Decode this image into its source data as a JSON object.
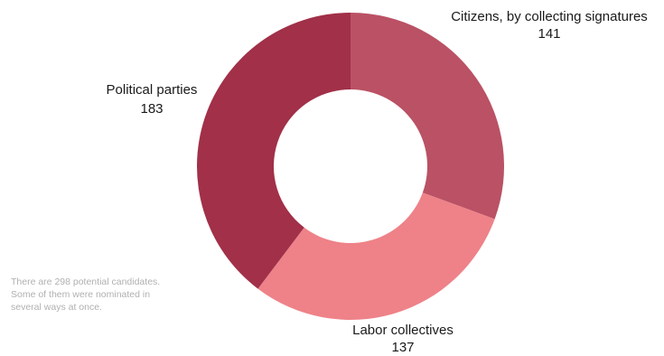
{
  "chart_data": {
    "type": "pie",
    "donut": true,
    "categories": [
      "Citizens, by collecting signatures",
      "Labor collectives",
      "Political parties"
    ],
    "values": [
      141,
      137,
      183
    ],
    "colors": [
      "#ba5164",
      "#ee8288",
      "#a13048"
    ],
    "note_lines": [
      "There are 298 potential candidates.",
      "Some of them were nominated in",
      "several ways at once."
    ]
  }
}
